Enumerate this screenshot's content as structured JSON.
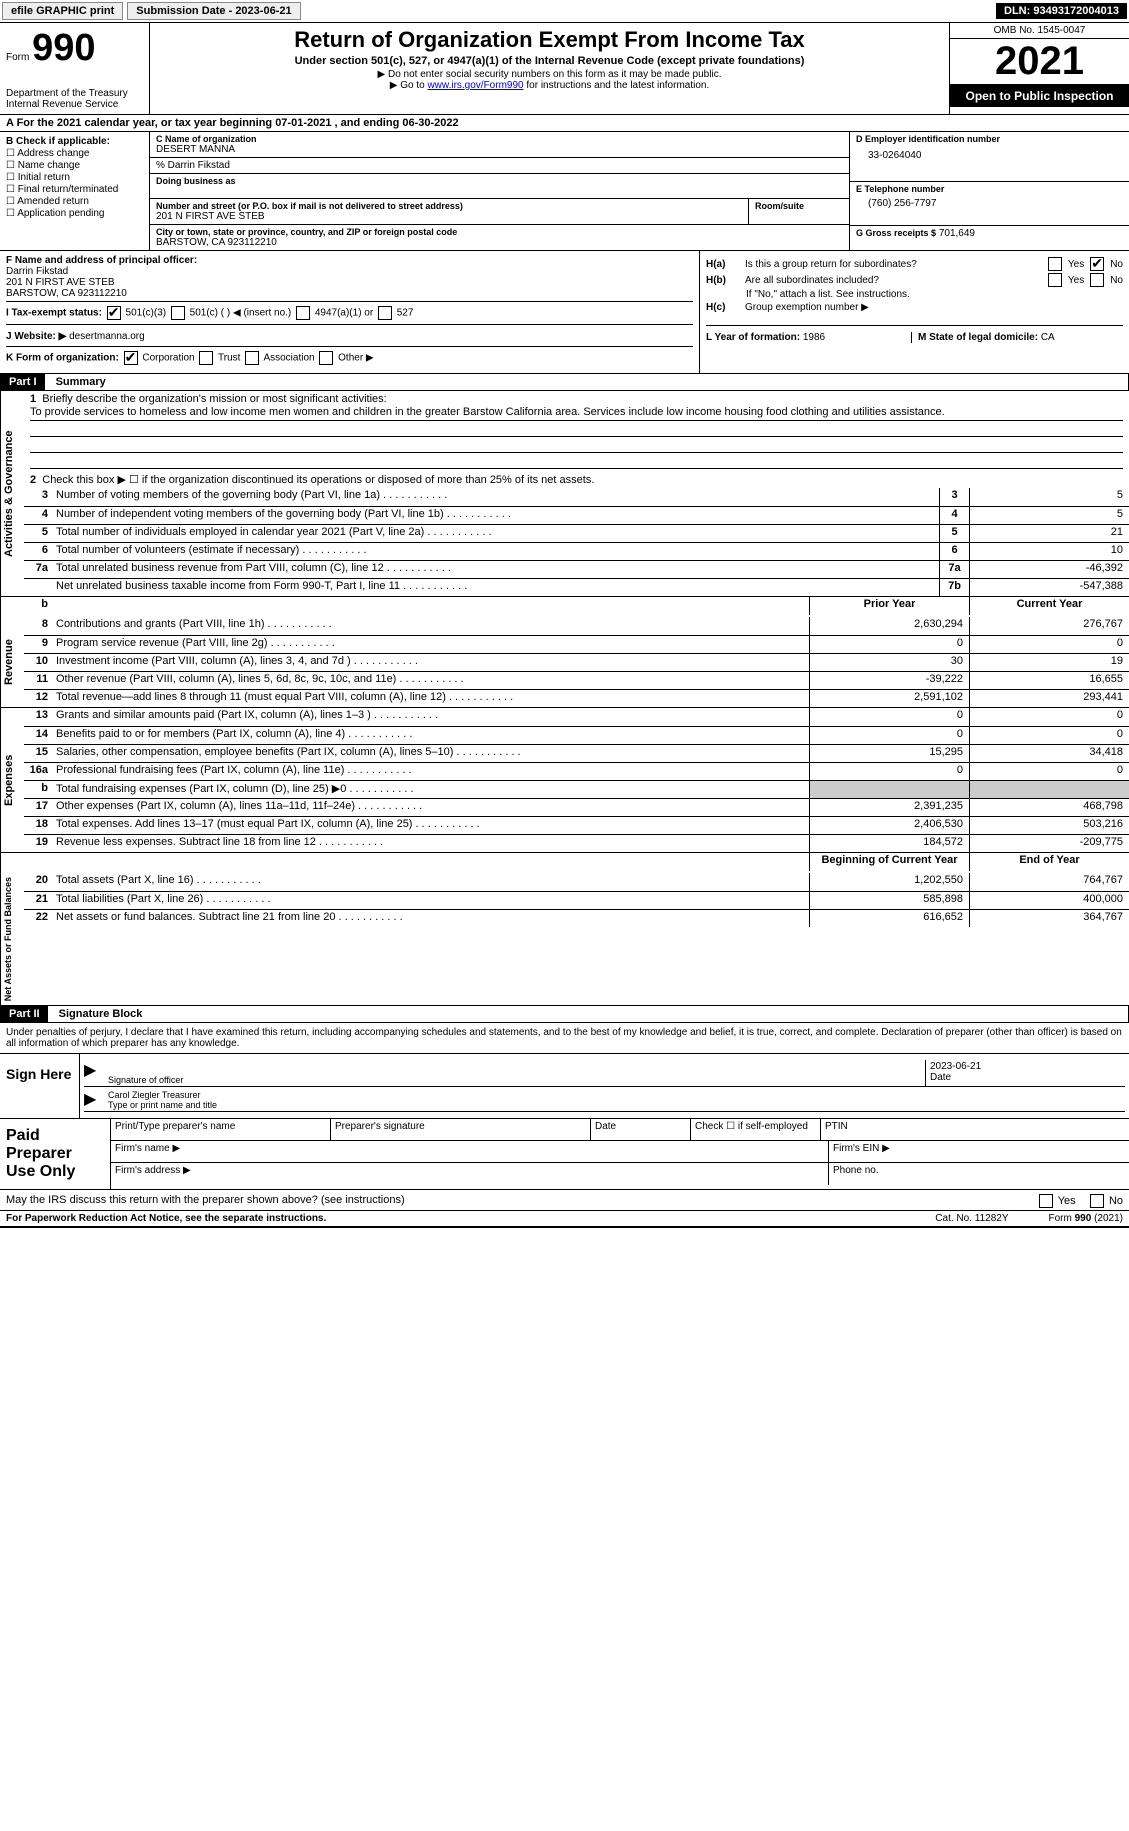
{
  "topbar": {
    "efile": "efile GRAPHIC print",
    "submission": "Submission Date - 2023-06-21",
    "dln": "DLN: 93493172004013"
  },
  "header": {
    "form_word": "Form",
    "form_num": "990",
    "dept": "Department of the Treasury\nInternal Revenue Service",
    "title": "Return of Organization Exempt From Income Tax",
    "sub": "Under section 501(c), 527, or 4947(a)(1) of the Internal Revenue Code (except private foundations)",
    "note1": "▶ Do not enter social security numbers on this form as it may be made public.",
    "note2_pre": "▶ Go to ",
    "note2_link": "www.irs.gov/Form990",
    "note2_post": " for instructions and the latest information.",
    "omb": "OMB No. 1545-0047",
    "year": "2021",
    "open": "Open to Public Inspection"
  },
  "row_a": "A For the 2021 calendar year, or tax year beginning 07-01-2021    , and ending 06-30-2022",
  "col_b": {
    "title": "B Check if applicable:",
    "items": [
      "Address change",
      "Name change",
      "Initial return",
      "Final return/terminated",
      "Amended return",
      "Application pending"
    ]
  },
  "col_c": {
    "name_lbl": "C Name of organization",
    "name": "DESERT MANNA",
    "care": "% Darrin Fikstad",
    "dba_lbl": "Doing business as",
    "street_lbl": "Number and street (or P.O. box if mail is not delivered to street address)",
    "street": "201 N FIRST AVE STEB",
    "room_lbl": "Room/suite",
    "city_lbl": "City or town, state or province, country, and ZIP or foreign postal code",
    "city": "BARSTOW, CA  923112210"
  },
  "col_d": {
    "d_lbl": "D Employer identification number",
    "ein": "33-0264040",
    "e_lbl": "E Telephone number",
    "phone": "(760) 256-7797",
    "g_lbl": "G Gross receipts $",
    "gross": "701,649"
  },
  "f": {
    "lbl": "F Name and address of principal officer:",
    "name": "Darrin Fikstad",
    "addr1": "201 N FIRST AVE STEB",
    "addr2": "BARSTOW, CA  923112210"
  },
  "i": {
    "lbl": "I   Tax-exempt status:",
    "opt1": "501(c)(3)",
    "opt2": "501(c) (  ) ◀ (insert no.)",
    "opt3": "4947(a)(1) or",
    "opt4": "527"
  },
  "j": {
    "lbl": "J   Website: ▶",
    "val": "desertmanna.org"
  },
  "k": {
    "lbl": "K Form of organization:",
    "opts": [
      "Corporation",
      "Trust",
      "Association",
      "Other ▶"
    ]
  },
  "h": {
    "a_lbl": "H(a)",
    "a_txt": "Is this a group return for subordinates?",
    "b_lbl": "H(b)",
    "b_txt": "Are all subordinates included?",
    "b_note": "If \"No,\" attach a list. See instructions.",
    "c_lbl": "H(c)",
    "c_txt": "Group exemption number ▶",
    "yes": "Yes",
    "no": "No"
  },
  "l": {
    "lbl": "L Year of formation:",
    "val": "1986"
  },
  "m": {
    "lbl": "M State of legal domicile:",
    "val": "CA"
  },
  "part1": {
    "hdr": "Part I",
    "title": "Summary",
    "q1": "Briefly describe the organization's mission or most significant activities:",
    "mission": "To provide services to homeless and low income men women and children in the greater Barstow California area. Services include low income housing food clothing and utilities assistance.",
    "q2": "Check this box ▶ ☐  if the organization discontinued its operations or disposed of more than 25% of its net assets."
  },
  "governance": {
    "rows": [
      {
        "n": "3",
        "d": "Number of voting members of the governing body (Part VI, line 1a)",
        "b": "3",
        "v": "5"
      },
      {
        "n": "4",
        "d": "Number of independent voting members of the governing body (Part VI, line 1b)",
        "b": "4",
        "v": "5"
      },
      {
        "n": "5",
        "d": "Total number of individuals employed in calendar year 2021 (Part V, line 2a)",
        "b": "5",
        "v": "21"
      },
      {
        "n": "6",
        "d": "Total number of volunteers (estimate if necessary)",
        "b": "6",
        "v": "10"
      },
      {
        "n": "7a",
        "d": "Total unrelated business revenue from Part VIII, column (C), line 12",
        "b": "7a",
        "v": "-46,392"
      },
      {
        "n": "",
        "d": "Net unrelated business taxable income from Form 990-T, Part I, line 11",
        "b": "7b",
        "v": "-547,388"
      }
    ]
  },
  "cols": {
    "prior": "Prior Year",
    "current": "Current Year",
    "begin": "Beginning of Current Year",
    "end": "End of Year"
  },
  "revenue": {
    "label": "Revenue",
    "rows": [
      {
        "n": "8",
        "d": "Contributions and grants (Part VIII, line 1h)",
        "p": "2,630,294",
        "c": "276,767"
      },
      {
        "n": "9",
        "d": "Program service revenue (Part VIII, line 2g)",
        "p": "0",
        "c": "0"
      },
      {
        "n": "10",
        "d": "Investment income (Part VIII, column (A), lines 3, 4, and 7d )",
        "p": "30",
        "c": "19"
      },
      {
        "n": "11",
        "d": "Other revenue (Part VIII, column (A), lines 5, 6d, 8c, 9c, 10c, and 11e)",
        "p": "-39,222",
        "c": "16,655"
      },
      {
        "n": "12",
        "d": "Total revenue—add lines 8 through 11 (must equal Part VIII, column (A), line 12)",
        "p": "2,591,102",
        "c": "293,441"
      }
    ]
  },
  "expenses": {
    "label": "Expenses",
    "rows": [
      {
        "n": "13",
        "d": "Grants and similar amounts paid (Part IX, column (A), lines 1–3 )",
        "p": "0",
        "c": "0"
      },
      {
        "n": "14",
        "d": "Benefits paid to or for members (Part IX, column (A), line 4)",
        "p": "0",
        "c": "0"
      },
      {
        "n": "15",
        "d": "Salaries, other compensation, employee benefits (Part IX, column (A), lines 5–10)",
        "p": "15,295",
        "c": "34,418"
      },
      {
        "n": "16a",
        "d": "Professional fundraising fees (Part IX, column (A), line 11e)",
        "p": "0",
        "c": "0"
      },
      {
        "n": "b",
        "d": "Total fundraising expenses (Part IX, column (D), line 25) ▶0",
        "p": "",
        "c": "",
        "gray": true
      },
      {
        "n": "17",
        "d": "Other expenses (Part IX, column (A), lines 11a–11d, 11f–24e)",
        "p": "2,391,235",
        "c": "468,798"
      },
      {
        "n": "18",
        "d": "Total expenses. Add lines 13–17 (must equal Part IX, column (A), line 25)",
        "p": "2,406,530",
        "c": "503,216"
      },
      {
        "n": "19",
        "d": "Revenue less expenses. Subtract line 18 from line 12",
        "p": "184,572",
        "c": "-209,775"
      }
    ]
  },
  "netassets": {
    "label": "Net Assets or Fund Balances",
    "rows": [
      {
        "n": "20",
        "d": "Total assets (Part X, line 16)",
        "p": "1,202,550",
        "c": "764,767"
      },
      {
        "n": "21",
        "d": "Total liabilities (Part X, line 26)",
        "p": "585,898",
        "c": "400,000"
      },
      {
        "n": "22",
        "d": "Net assets or fund balances. Subtract line 21 from line 20",
        "p": "616,652",
        "c": "364,767"
      }
    ]
  },
  "part2": {
    "hdr": "Part II",
    "title": "Signature Block",
    "decl": "Under penalties of perjury, I declare that I have examined this return, including accompanying schedules and statements, and to the best of my knowledge and belief, it is true, correct, and complete. Declaration of preparer (other than officer) is based on all information of which preparer has any knowledge."
  },
  "sign": {
    "here": "Sign Here",
    "sig_lbl": "Signature of officer",
    "date": "2023-06-21",
    "date_lbl": "Date",
    "name": "Carol Ziegler Treasurer",
    "name_lbl": "Type or print name and title"
  },
  "prep": {
    "title": "Paid Preparer Use Only",
    "r1": {
      "a": "Print/Type preparer's name",
      "b": "Preparer's signature",
      "c": "Date",
      "d": "Check ☐ if self-employed",
      "e": "PTIN"
    },
    "r2": {
      "a": "Firm's name   ▶",
      "b": "Firm's EIN ▶"
    },
    "r3": {
      "a": "Firm's address ▶",
      "b": "Phone no."
    }
  },
  "discuss": {
    "txt": "May the IRS discuss this return with the preparer shown above? (see instructions)",
    "yes": "Yes",
    "no": "No"
  },
  "footer": {
    "left": "For Paperwork Reduction Act Notice, see the separate instructions.",
    "mid": "Cat. No. 11282Y",
    "right": "Form 990 (2021)"
  },
  "side_labels": {
    "ag": "Activities & Governance"
  }
}
